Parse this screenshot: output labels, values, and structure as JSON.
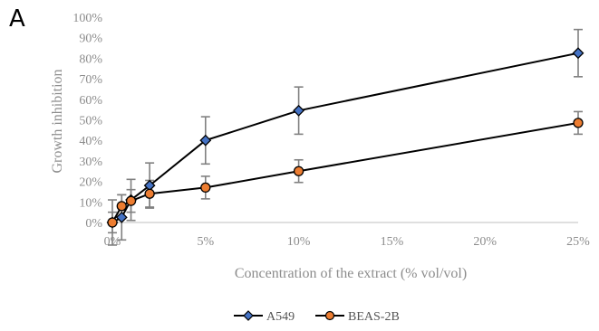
{
  "panel_label": "A",
  "chart_data": {
    "type": "line",
    "title": "",
    "xlabel": "Concentration of the extract (% vol/vol)",
    "ylabel": "Growth inhibition",
    "x": [
      0,
      0.5,
      1,
      2,
      5,
      10,
      25
    ],
    "x_tick_values": [
      0,
      5,
      10,
      15,
      20,
      25
    ],
    "x_tick_labels": [
      "0%",
      "5%",
      "10%",
      "15%",
      "20%",
      "25%"
    ],
    "xlim": [
      0,
      25
    ],
    "y_tick_values": [
      0,
      10,
      20,
      30,
      40,
      50,
      60,
      70,
      80,
      90,
      100
    ],
    "y_tick_labels": [
      "0%",
      "10%",
      "20%",
      "30%",
      "40%",
      "50%",
      "60%",
      "70%",
      "80%",
      "90%",
      "100%"
    ],
    "ylim": [
      0,
      100
    ],
    "grid": false,
    "legend_position": "bottom",
    "series": [
      {
        "name": "A549",
        "marker": "diamond",
        "color": "#4472c4",
        "values": [
          0,
          2.5,
          11,
          18,
          40,
          54.5,
          82.5
        ],
        "error": [
          11,
          11,
          10,
          11,
          11.5,
          11.5,
          11.5
        ]
      },
      {
        "name": "BEAS-2B",
        "marker": "circle",
        "color": "#ed7d31",
        "values": [
          0,
          8,
          10.5,
          14,
          17,
          25,
          48.5
        ],
        "error": [
          5,
          5.5,
          5.5,
          6.5,
          5.5,
          5.5,
          5.5
        ]
      }
    ]
  }
}
